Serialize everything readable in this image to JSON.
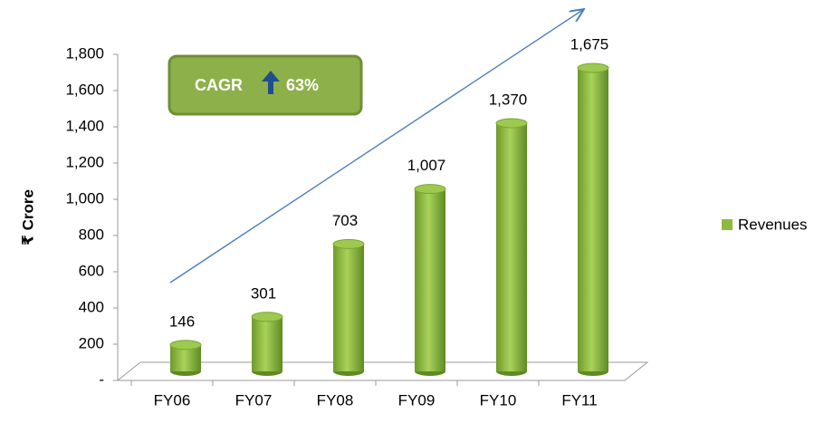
{
  "chart_data": {
    "type": "bar",
    "y_label": "₹ Crore",
    "categories": [
      "FY06",
      "FY07",
      "FY08",
      "FY09",
      "FY10",
      "FY11"
    ],
    "series": [
      {
        "name": "Revenues",
        "color": "#8cba3f",
        "values": [
          146,
          301,
          703,
          1007,
          1370,
          1675
        ],
        "value_labels": [
          "146",
          "301",
          "703",
          "1,007",
          "1,370",
          "1,675"
        ]
      }
    ],
    "ylim": [
      0,
      1800
    ],
    "yticks": [
      {
        "value": 0,
        "label": "-"
      },
      200,
      400,
      600,
      800,
      {
        "value": 1000,
        "label": "1,000"
      },
      {
        "value": 1200,
        "label": "1,200"
      },
      {
        "value": 1400,
        "label": "1,400"
      },
      {
        "value": 1600,
        "label": "1,600"
      },
      {
        "value": 1800,
        "label": "1,800"
      }
    ],
    "legend": "right",
    "annotation": {
      "label": "CAGR",
      "value_label": "63%"
    }
  }
}
